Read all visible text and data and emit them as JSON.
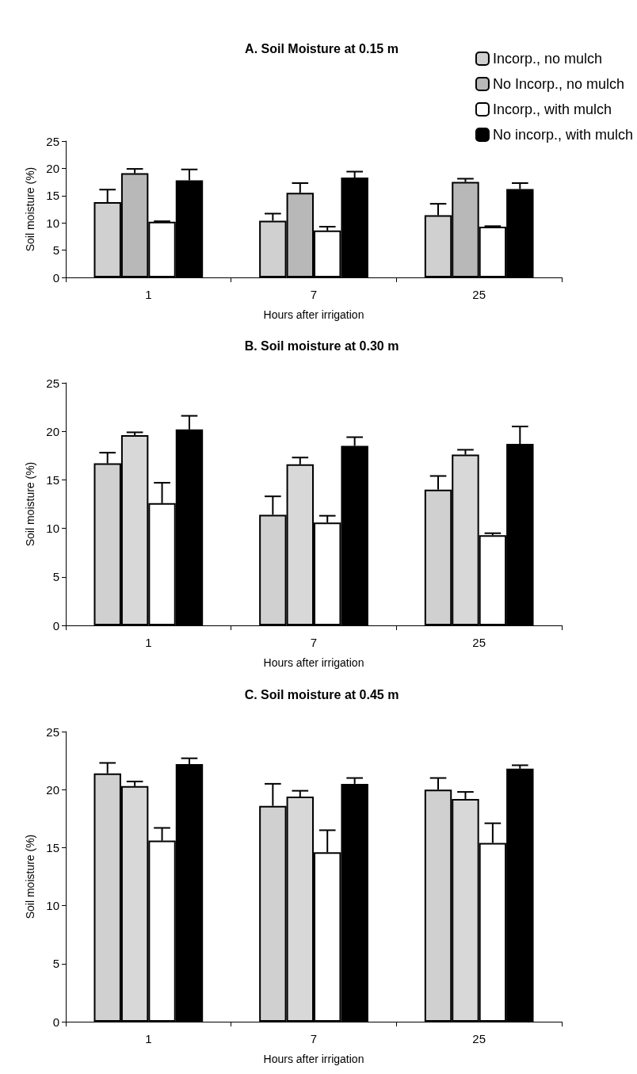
{
  "chart_data": [
    {
      "type": "bar",
      "title": "A. Soil Moisture at 0.15 m",
      "xlabel": "Hours after irrigation",
      "ylabel": "Soil moisture (%)",
      "categories": [
        "1",
        "7",
        "25"
      ],
      "ylim": [
        0,
        25
      ],
      "yticks": [
        0,
        5,
        10,
        15,
        20,
        25
      ],
      "grid": false,
      "legend": "top right",
      "series": [
        {
          "name": "Incorp., no mulch",
          "color": "#d0d0d0",
          "values": [
            13.8,
            10.4,
            11.4
          ],
          "errors": [
            [
              13.8,
              16.1
            ],
            [
              10.4,
              11.7
            ],
            [
              11.4,
              13.5
            ]
          ]
        },
        {
          "name": "No Incorp., no mulch",
          "color": "#b8b8b8",
          "values": [
            19.1,
            15.5,
            17.5
          ],
          "errors": [
            [
              19.1,
              19.9
            ],
            [
              15.5,
              17.3
            ],
            [
              17.5,
              18.1
            ]
          ]
        },
        {
          "name": "Incorp., with mulch",
          "color": "#ffffff",
          "values": [
            10.2,
            8.6,
            9.3
          ],
          "errors": [
            [
              10.2,
              10.3
            ],
            [
              8.6,
              9.3
            ],
            [
              9.3,
              9.4
            ]
          ]
        },
        {
          "name": "No incorp., with mulch",
          "color": "#000000",
          "values": [
            17.8,
            18.3,
            16.2
          ],
          "errors": [
            [
              17.8,
              19.8
            ],
            [
              18.3,
              19.4
            ],
            [
              16.2,
              17.3
            ]
          ]
        }
      ]
    },
    {
      "type": "bar",
      "title": "B. Soil moisture at 0.30 m",
      "xlabel": "Hours after irrigation",
      "ylabel": "Soil moisture (%)",
      "categories": [
        "1",
        "7",
        "25"
      ],
      "ylim": [
        0,
        25
      ],
      "yticks": [
        0,
        5,
        10,
        15,
        20,
        25
      ],
      "grid": false,
      "legend": false,
      "series": [
        {
          "color": "#d0d0d0",
          "values": [
            16.7,
            11.4,
            14.0
          ],
          "errors": [
            [
              16.7,
              17.8
            ],
            [
              11.4,
              13.3
            ],
            [
              14.0,
              15.4
            ]
          ]
        },
        {
          "color": "#d8d8d8",
          "values": [
            19.6,
            16.6,
            17.6
          ],
          "errors": [
            [
              19.6,
              19.9
            ],
            [
              16.6,
              17.3
            ],
            [
              17.6,
              18.1
            ]
          ]
        },
        {
          "color": "#ffffff",
          "values": [
            12.6,
            10.6,
            9.3
          ],
          "errors": [
            [
              12.6,
              14.7
            ],
            [
              10.6,
              11.3
            ],
            [
              9.3,
              9.5
            ]
          ]
        },
        {
          "color": "#000000",
          "values": [
            20.2,
            18.5,
            18.7
          ],
          "errors": [
            [
              20.2,
              21.6
            ],
            [
              18.5,
              19.4
            ],
            [
              18.7,
              20.5
            ]
          ]
        }
      ]
    },
    {
      "type": "bar",
      "title": "C. Soil moisture at 0.45 m",
      "xlabel": "Hours after irrigation",
      "ylabel": "Soil moisture (%)",
      "categories": [
        "1",
        "7",
        "25"
      ],
      "ylim": [
        0,
        25
      ],
      "yticks": [
        0,
        5,
        10,
        15,
        20,
        25
      ],
      "grid": false,
      "legend": false,
      "series": [
        {
          "color": "#d0d0d0",
          "values": [
            21.4,
            18.6,
            20.0
          ],
          "errors": [
            [
              21.4,
              22.3
            ],
            [
              18.6,
              20.5
            ],
            [
              20.0,
              21.0
            ]
          ]
        },
        {
          "color": "#d8d8d8",
          "values": [
            20.3,
            19.4,
            19.2
          ],
          "errors": [
            [
              20.3,
              20.7
            ],
            [
              19.4,
              19.9
            ],
            [
              19.2,
              19.8
            ]
          ]
        },
        {
          "color": "#ffffff",
          "values": [
            15.6,
            14.6,
            15.4
          ],
          "errors": [
            [
              15.6,
              16.7
            ],
            [
              14.6,
              16.5
            ],
            [
              15.4,
              17.1
            ]
          ]
        },
        {
          "color": "#000000",
          "values": [
            22.2,
            20.5,
            21.8
          ],
          "errors": [
            [
              22.2,
              22.7
            ],
            [
              20.5,
              21.0
            ],
            [
              21.8,
              22.1
            ]
          ]
        }
      ]
    }
  ]
}
